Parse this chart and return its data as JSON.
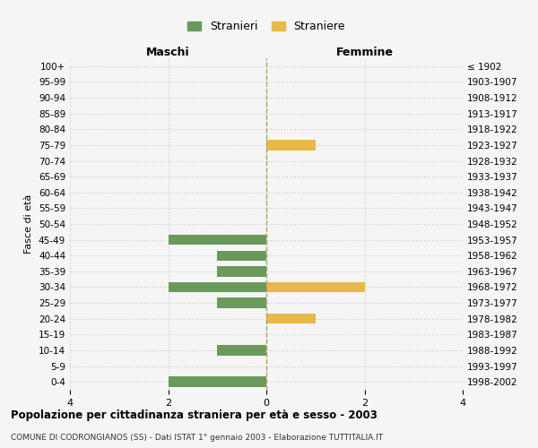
{
  "age_groups": [
    "100+",
    "95-99",
    "90-94",
    "85-89",
    "80-84",
    "75-79",
    "70-74",
    "65-69",
    "60-64",
    "55-59",
    "50-54",
    "45-49",
    "40-44",
    "35-39",
    "30-34",
    "25-29",
    "20-24",
    "15-19",
    "10-14",
    "5-9",
    "0-4"
  ],
  "birth_years": [
    "≤ 1902",
    "1903-1907",
    "1908-1912",
    "1913-1917",
    "1918-1922",
    "1923-1927",
    "1928-1932",
    "1933-1937",
    "1938-1942",
    "1943-1947",
    "1948-1952",
    "1953-1957",
    "1958-1962",
    "1963-1967",
    "1968-1972",
    "1973-1977",
    "1978-1982",
    "1983-1987",
    "1988-1992",
    "1993-1997",
    "1998-2002"
  ],
  "maschi_values": [
    0,
    0,
    0,
    0,
    0,
    0,
    0,
    0,
    0,
    0,
    0,
    2,
    1,
    1,
    2,
    1,
    0,
    0,
    1,
    0,
    2
  ],
  "femmine_values": [
    0,
    0,
    0,
    0,
    0,
    1,
    0,
    0,
    0,
    0,
    0,
    0,
    0,
    0,
    2,
    0,
    1,
    0,
    0,
    0,
    0
  ],
  "male_color": "#6a9a5b",
  "female_color": "#e8b84b",
  "xlim": 4,
  "title": "Popolazione per cittadinanza straniera per età e sesso - 2003",
  "subtitle": "COMUNE DI CODRONGIANOS (SS) - Dati ISTAT 1° gennaio 2003 - Elaborazione TUTTITALIA.IT",
  "ylabel_left": "Fasce di età",
  "legend_male": "Stranieri",
  "legend_female": "Straniere",
  "header_male": "Maschi",
  "header_female": "Femmine",
  "bg_color": "#f5f5f5",
  "grid_color": "#cccccc",
  "center_line_color": "#aaa855"
}
